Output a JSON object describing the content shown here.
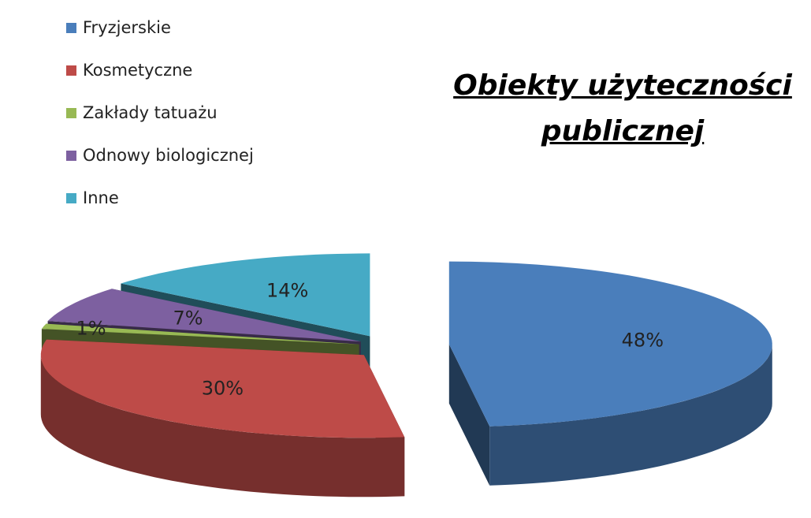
{
  "chart_data": {
    "type": "pie",
    "title": "Obiekty użyteczności publicznej",
    "categories": [
      "Fryzjerskie",
      "Kosmetyczne",
      "Zakłady tatuażu",
      "Odnowy biologicznej",
      "Inne"
    ],
    "values": [
      48,
      30,
      1,
      7,
      14
    ],
    "value_labels": [
      "48%",
      "30%",
      "1%",
      "7%",
      "14%"
    ],
    "colors": [
      "#4a7ebb",
      "#be4b48",
      "#98b954",
      "#7d60a0",
      "#46aac5"
    ],
    "legend": "upper left"
  }
}
